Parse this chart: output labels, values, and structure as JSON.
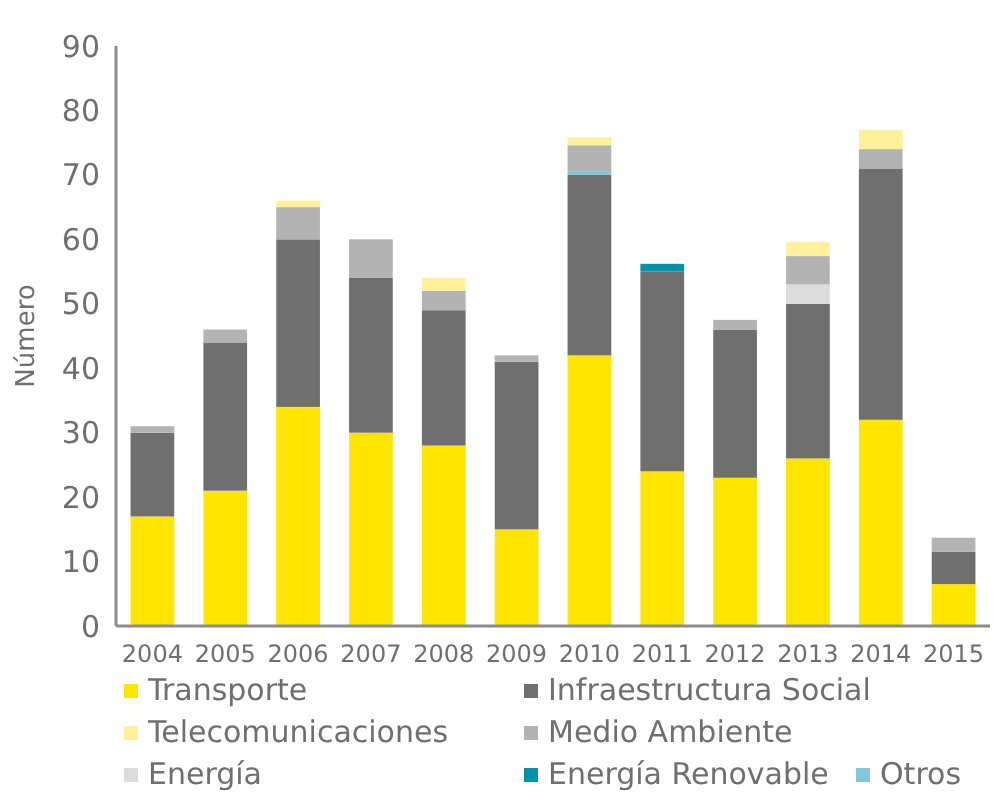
{
  "chart_data": {
    "type": "bar",
    "stacked": true,
    "ylabel": "Número",
    "categories": [
      "2004",
      "2005",
      "2006",
      "2007",
      "2008",
      "2009",
      "2010",
      "2011",
      "2012",
      "2013",
      "2014",
      "2015"
    ],
    "ylim": [
      0,
      90
    ],
    "yticks": [
      0,
      10,
      20,
      30,
      40,
      50,
      60,
      70,
      80,
      90
    ],
    "grid": false,
    "legend": "bottom",
    "series": [
      {
        "name": "Transporte",
        "color": "#ffe600",
        "values": [
          17,
          21,
          34,
          30,
          28,
          15,
          42,
          24,
          23,
          26,
          32,
          6.5
        ]
      },
      {
        "name": "Infraestructura Social",
        "color": "#6f6f6f",
        "values": [
          13,
          23,
          26,
          24,
          21,
          26,
          28,
          31,
          23,
          24,
          39,
          5
        ]
      },
      {
        "name": "Energía",
        "color": "#dcdcdc",
        "values": [
          0,
          0,
          0,
          0,
          0,
          0,
          0,
          0,
          0,
          3,
          0,
          0
        ]
      },
      {
        "name": "Energía Renovable",
        "color": "#0093a8",
        "values": [
          0,
          0,
          0,
          0,
          0,
          0,
          0,
          1.2,
          0,
          0,
          0,
          0
        ]
      },
      {
        "name": "Otros",
        "color": "#7ec8d8",
        "values": [
          0,
          0,
          0,
          0,
          0,
          0,
          0.6,
          0,
          0,
          0,
          0,
          0
        ]
      },
      {
        "name": "Medio Ambiente",
        "color": "#b3b3b3",
        "values": [
          1,
          2,
          5,
          6,
          3,
          1,
          4,
          0,
          1.5,
          4.4,
          3,
          2.2
        ]
      },
      {
        "name": "Telecomunicaciones",
        "color": "#fff09a",
        "values": [
          0,
          0,
          1,
          0,
          2,
          0,
          1.2,
          0,
          0,
          2.2,
          3,
          0
        ]
      }
    ]
  }
}
